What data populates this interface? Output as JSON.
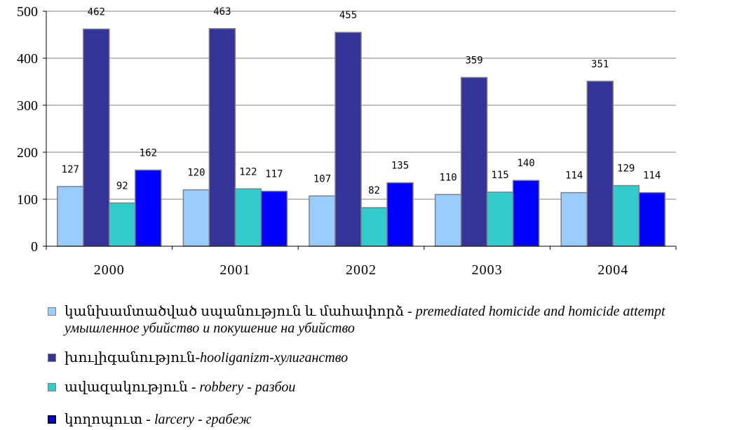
{
  "chart_data": {
    "type": "bar",
    "categories": [
      "2000",
      "2001",
      "2002",
      "2003",
      "2004"
    ],
    "ylim": [
      0,
      500
    ],
    "yticks": [
      "0",
      "100",
      "200",
      "300",
      "400",
      "500"
    ],
    "grid": true,
    "series": [
      {
        "name": "կանխամտածված սպանություն և մահափորձ - premediated homicide and homicide attempt умышленное убийство и покушение на убийство",
        "values": [
          127,
          120,
          107,
          110,
          114
        ],
        "color": "#99ccff"
      },
      {
        "name": "խուլիգանություն-hooliganizm-хулиганство",
        "values": [
          462,
          463,
          455,
          359,
          351
        ],
        "color": "#333399"
      },
      {
        "name": "ավազակություն - robbery - разбои",
        "values": [
          92,
          122,
          82,
          115,
          129
        ],
        "color": "#33cccc"
      },
      {
        "name": "կողոպուտ - larcery - грабеж",
        "values": [
          162,
          117,
          135,
          140,
          114
        ],
        "color": "#0000ff"
      }
    ],
    "data_labels": [
      [
        "127",
        "120",
        "107",
        "110",
        "114"
      ],
      [
        "462",
        "463",
        "455",
        "359",
        "351"
      ],
      [
        "92",
        "122",
        "82",
        "115",
        "129"
      ],
      [
        "162",
        "117",
        "135",
        "140",
        "114"
      ]
    ],
    "legend_position": "bottom"
  },
  "legend": [
    {
      "armenian": "կանխամտածված սպանություն և մահափորձ - ",
      "english": "premediated homicide and homicide attempt",
      "russian": "умышленное убийство и покушение на убийство",
      "color": "#99ccff"
    },
    {
      "armenian": "խուլիգանություն-",
      "english": "hooliganizm",
      "sep": "-",
      "russian": "хулиганство",
      "color": "#333399"
    },
    {
      "armenian": "ավազակություն - ",
      "english": "robbery",
      "sep": " - ",
      "russian": "разбои",
      "color": "#33cccc"
    },
    {
      "armenian": "կողոպուտ - ",
      "english": "larcery",
      "sep": " - ",
      "russian": "грабеж",
      "color": "#0000ff"
    }
  ]
}
